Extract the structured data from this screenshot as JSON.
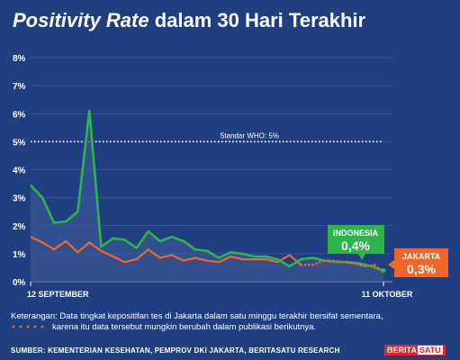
{
  "title": {
    "italic": "Positivity Rate",
    "rest": " dalam 30 Hari Terakhir"
  },
  "chart_data": {
    "type": "line",
    "y_ticks": [
      "0%",
      "1%",
      "2%",
      "3%",
      "4%",
      "5%",
      "6%",
      "7%",
      "8%"
    ],
    "ylim": [
      0,
      8
    ],
    "x_labels": {
      "start": "12 SEPTEMBER",
      "end": "11 OKTOBER"
    },
    "reference_line": {
      "value": 5,
      "label": "Standar WHO: 5%"
    },
    "series": [
      {
        "name": "INDONESIA",
        "value_label": "0,4%",
        "color": "#2fb34a",
        "values": [
          3.45,
          3.0,
          2.1,
          2.15,
          2.5,
          6.1,
          1.25,
          1.55,
          1.5,
          1.2,
          1.8,
          1.45,
          1.6,
          1.45,
          1.15,
          1.1,
          0.85,
          1.05,
          1.0,
          0.9,
          0.9,
          0.8,
          0.55,
          0.8,
          0.85,
          0.75,
          0.7,
          0.7,
          0.65,
          0.55,
          0.4
        ]
      },
      {
        "name": "JAKARTA",
        "value_label": "0,3%",
        "color": "#f0652b",
        "values": [
          1.6,
          1.4,
          1.15,
          1.45,
          1.05,
          1.4,
          1.1,
          0.9,
          0.7,
          0.8,
          1.15,
          0.85,
          0.95,
          0.75,
          0.85,
          0.75,
          0.7,
          0.9,
          0.8,
          0.8,
          0.8,
          0.7,
          0.95,
          0.6
        ],
        "provisional_values": [
          0.6,
          0.75,
          0.75,
          0.7,
          0.65,
          0.55,
          0.6,
          0.3
        ]
      }
    ]
  },
  "note": {
    "line1": "Keterangan: Data tingkat kepositifan tes di Jakarta dalam satu minggu terakhir bersifat sementara,",
    "line2": "karena itu data tersebut mungkin berubah dalam publikasi berikutnya."
  },
  "source": "SUMBER: KEMENTERIAN KESEHATAN, PEMPROV DKI JAKARTA, BERITASATU RESEARCH",
  "logo": {
    "part1": "BERITA",
    "part2": "SATU"
  },
  "colors": {
    "background": "#1f3f80",
    "indonesia": "#2fb34a",
    "jakarta": "#f0652b",
    "grid": "#6f86b5"
  }
}
